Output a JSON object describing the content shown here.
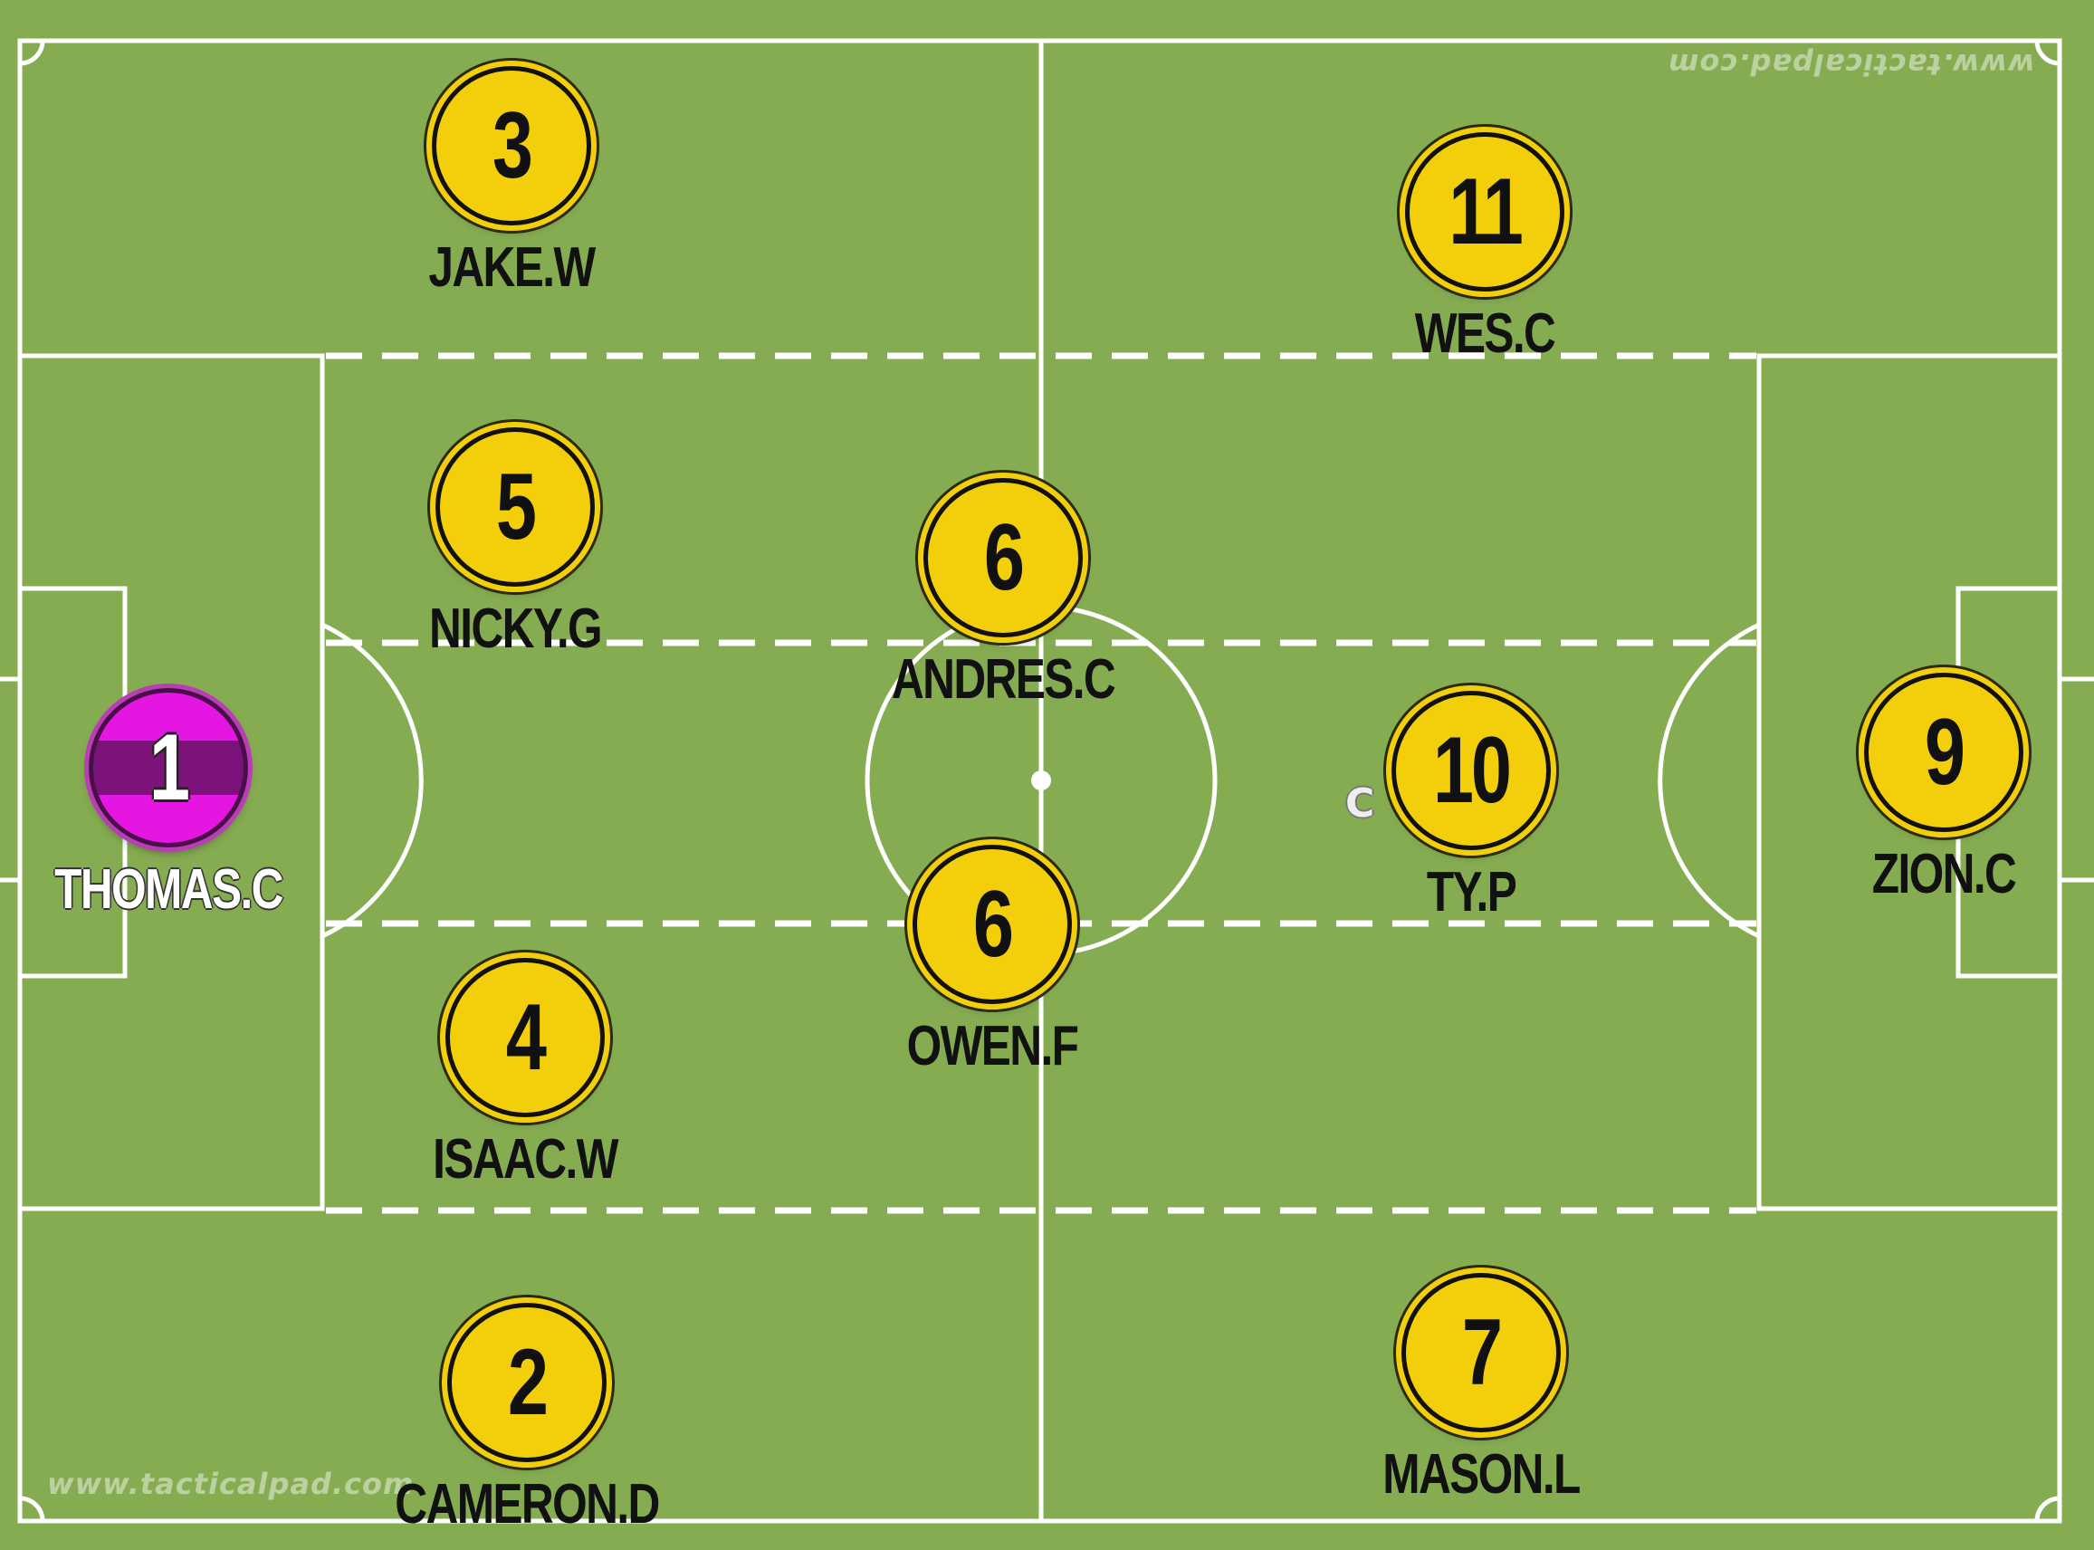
{
  "watermark": "www.tacticalpad.com",
  "captain_marker": "C",
  "colors": {
    "grass": "#86ac52",
    "lines": "#ffffff",
    "outfield_kit": "#f3cf0b",
    "goalkeeper_kit": "#e515e2",
    "goalkeeper_stripe": "#7c137a"
  },
  "players": [
    {
      "number": "1",
      "name": "THOMAS.C",
      "role": "goalkeeper"
    },
    {
      "number": "3",
      "name": "JAKE.W",
      "role": "outfield"
    },
    {
      "number": "5",
      "name": "NICKY.G",
      "role": "outfield"
    },
    {
      "number": "4",
      "name": "ISAAC.W",
      "role": "outfield"
    },
    {
      "number": "2",
      "name": "CAMERON.D",
      "role": "outfield"
    },
    {
      "number": "6",
      "name": "ANDRES.C",
      "role": "outfield"
    },
    {
      "number": "6",
      "name": "OWEN.F",
      "role": "outfield"
    },
    {
      "number": "11",
      "name": "WES.C",
      "role": "outfield"
    },
    {
      "number": "10",
      "name": "TY.P",
      "role": "outfield",
      "captain": true
    },
    {
      "number": "7",
      "name": "MASON.L",
      "role": "outfield"
    },
    {
      "number": "9",
      "name": "ZION.C",
      "role": "outfield"
    }
  ]
}
